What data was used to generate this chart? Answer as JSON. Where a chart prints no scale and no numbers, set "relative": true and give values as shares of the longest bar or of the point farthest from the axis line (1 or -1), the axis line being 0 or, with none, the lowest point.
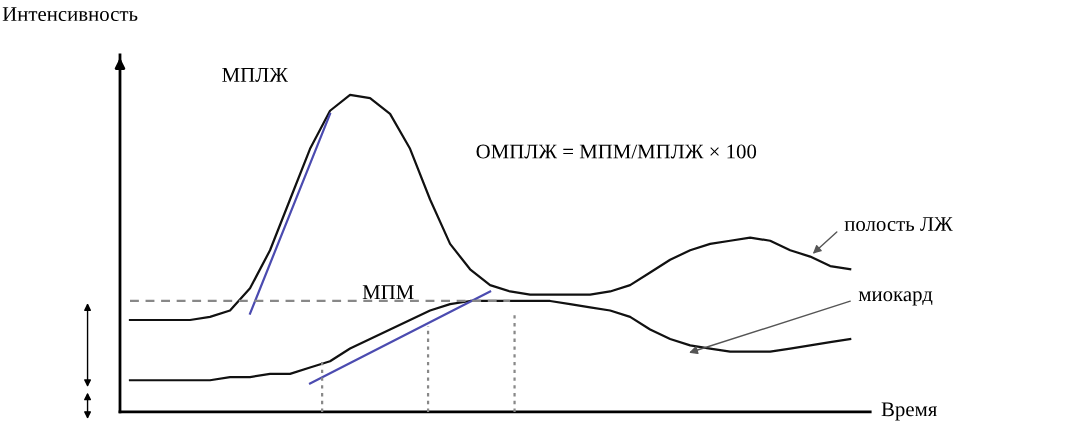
{
  "chart_data": {
    "type": "line",
    "relative": true,
    "ylabel": "Интенсивность",
    "xlabel": "Время",
    "categories": [
      null,
      null,
      null,
      null,
      null,
      null,
      null,
      null,
      null,
      null,
      null,
      null,
      null,
      null,
      null,
      null,
      null,
      null,
      null,
      null,
      null,
      null,
      null,
      null,
      null,
      null,
      null,
      null,
      null,
      null,
      null,
      null,
      null,
      null,
      null,
      null,
      null
    ],
    "series": [
      {
        "color": "#111111",
        "values": [
          0.29,
          0.29,
          0.29,
          0.29,
          0.3,
          0.32,
          0.39,
          0.51,
          0.67,
          0.83,
          0.95,
          1.0,
          0.99,
          0.94,
          0.83,
          0.67,
          0.53,
          0.45,
          0.4,
          0.38,
          0.37,
          0.37,
          0.37,
          0.37,
          0.38,
          0.4,
          0.44,
          0.48,
          0.51,
          0.53,
          0.54,
          0.55,
          0.54,
          0.51,
          0.49,
          0.46,
          0.45
        ]
      },
      {
        "color": "#111111",
        "values": [
          0.1,
          0.1,
          0.1,
          0.1,
          0.1,
          0.11,
          0.11,
          0.12,
          0.12,
          0.14,
          0.16,
          0.2,
          0.23,
          0.26,
          0.29,
          0.32,
          0.34,
          0.35,
          0.35,
          0.35,
          0.35,
          0.35,
          0.34,
          0.33,
          0.32,
          0.3,
          0.26,
          0.23,
          0.21,
          0.2,
          0.19,
          0.19,
          0.19,
          0.2,
          0.21,
          0.22,
          0.23
        ]
      },
      {
        "color": "#4b4bb0",
        "values": [
          null,
          null,
          null,
          null,
          null,
          null,
          0.31,
          null,
          null,
          null,
          0.94,
          null,
          null,
          null,
          null,
          null,
          null,
          null,
          null,
          null,
          null,
          null,
          null,
          null,
          null,
          null,
          null,
          null,
          null,
          null,
          null,
          null,
          null,
          null,
          null,
          null,
          null
        ]
      },
      {
        "color": "#4b4bb0",
        "values": [
          null,
          null,
          null,
          null,
          null,
          null,
          null,
          null,
          null,
          0.09,
          null,
          null,
          null,
          null,
          null,
          null,
          null,
          null,
          0.38,
          null,
          null,
          null,
          null,
          null,
          null,
          null,
          null,
          null,
          null,
          null,
          null,
          null,
          null,
          null,
          null,
          null,
          null
        ]
      },
      {
        "color": "#888888",
        "line_style": "dashed",
        "values": [
          0.35,
          null,
          null,
          null,
          null,
          null,
          null,
          null,
          null,
          null,
          null,
          null,
          null,
          null,
          null,
          null,
          null,
          null,
          null,
          0.35,
          null,
          null,
          null,
          null,
          null,
          null,
          null,
          null,
          null,
          null,
          null,
          null,
          null,
          null,
          null,
          null,
          null
        ]
      }
    ],
    "annotations": [
      "МПЛЖ",
      "МПМ",
      "ОМПЛЖ = МПМ/МПЛЖ × 100",
      "полость ЛЖ",
      "миокард"
    ],
    "grid": false
  }
}
